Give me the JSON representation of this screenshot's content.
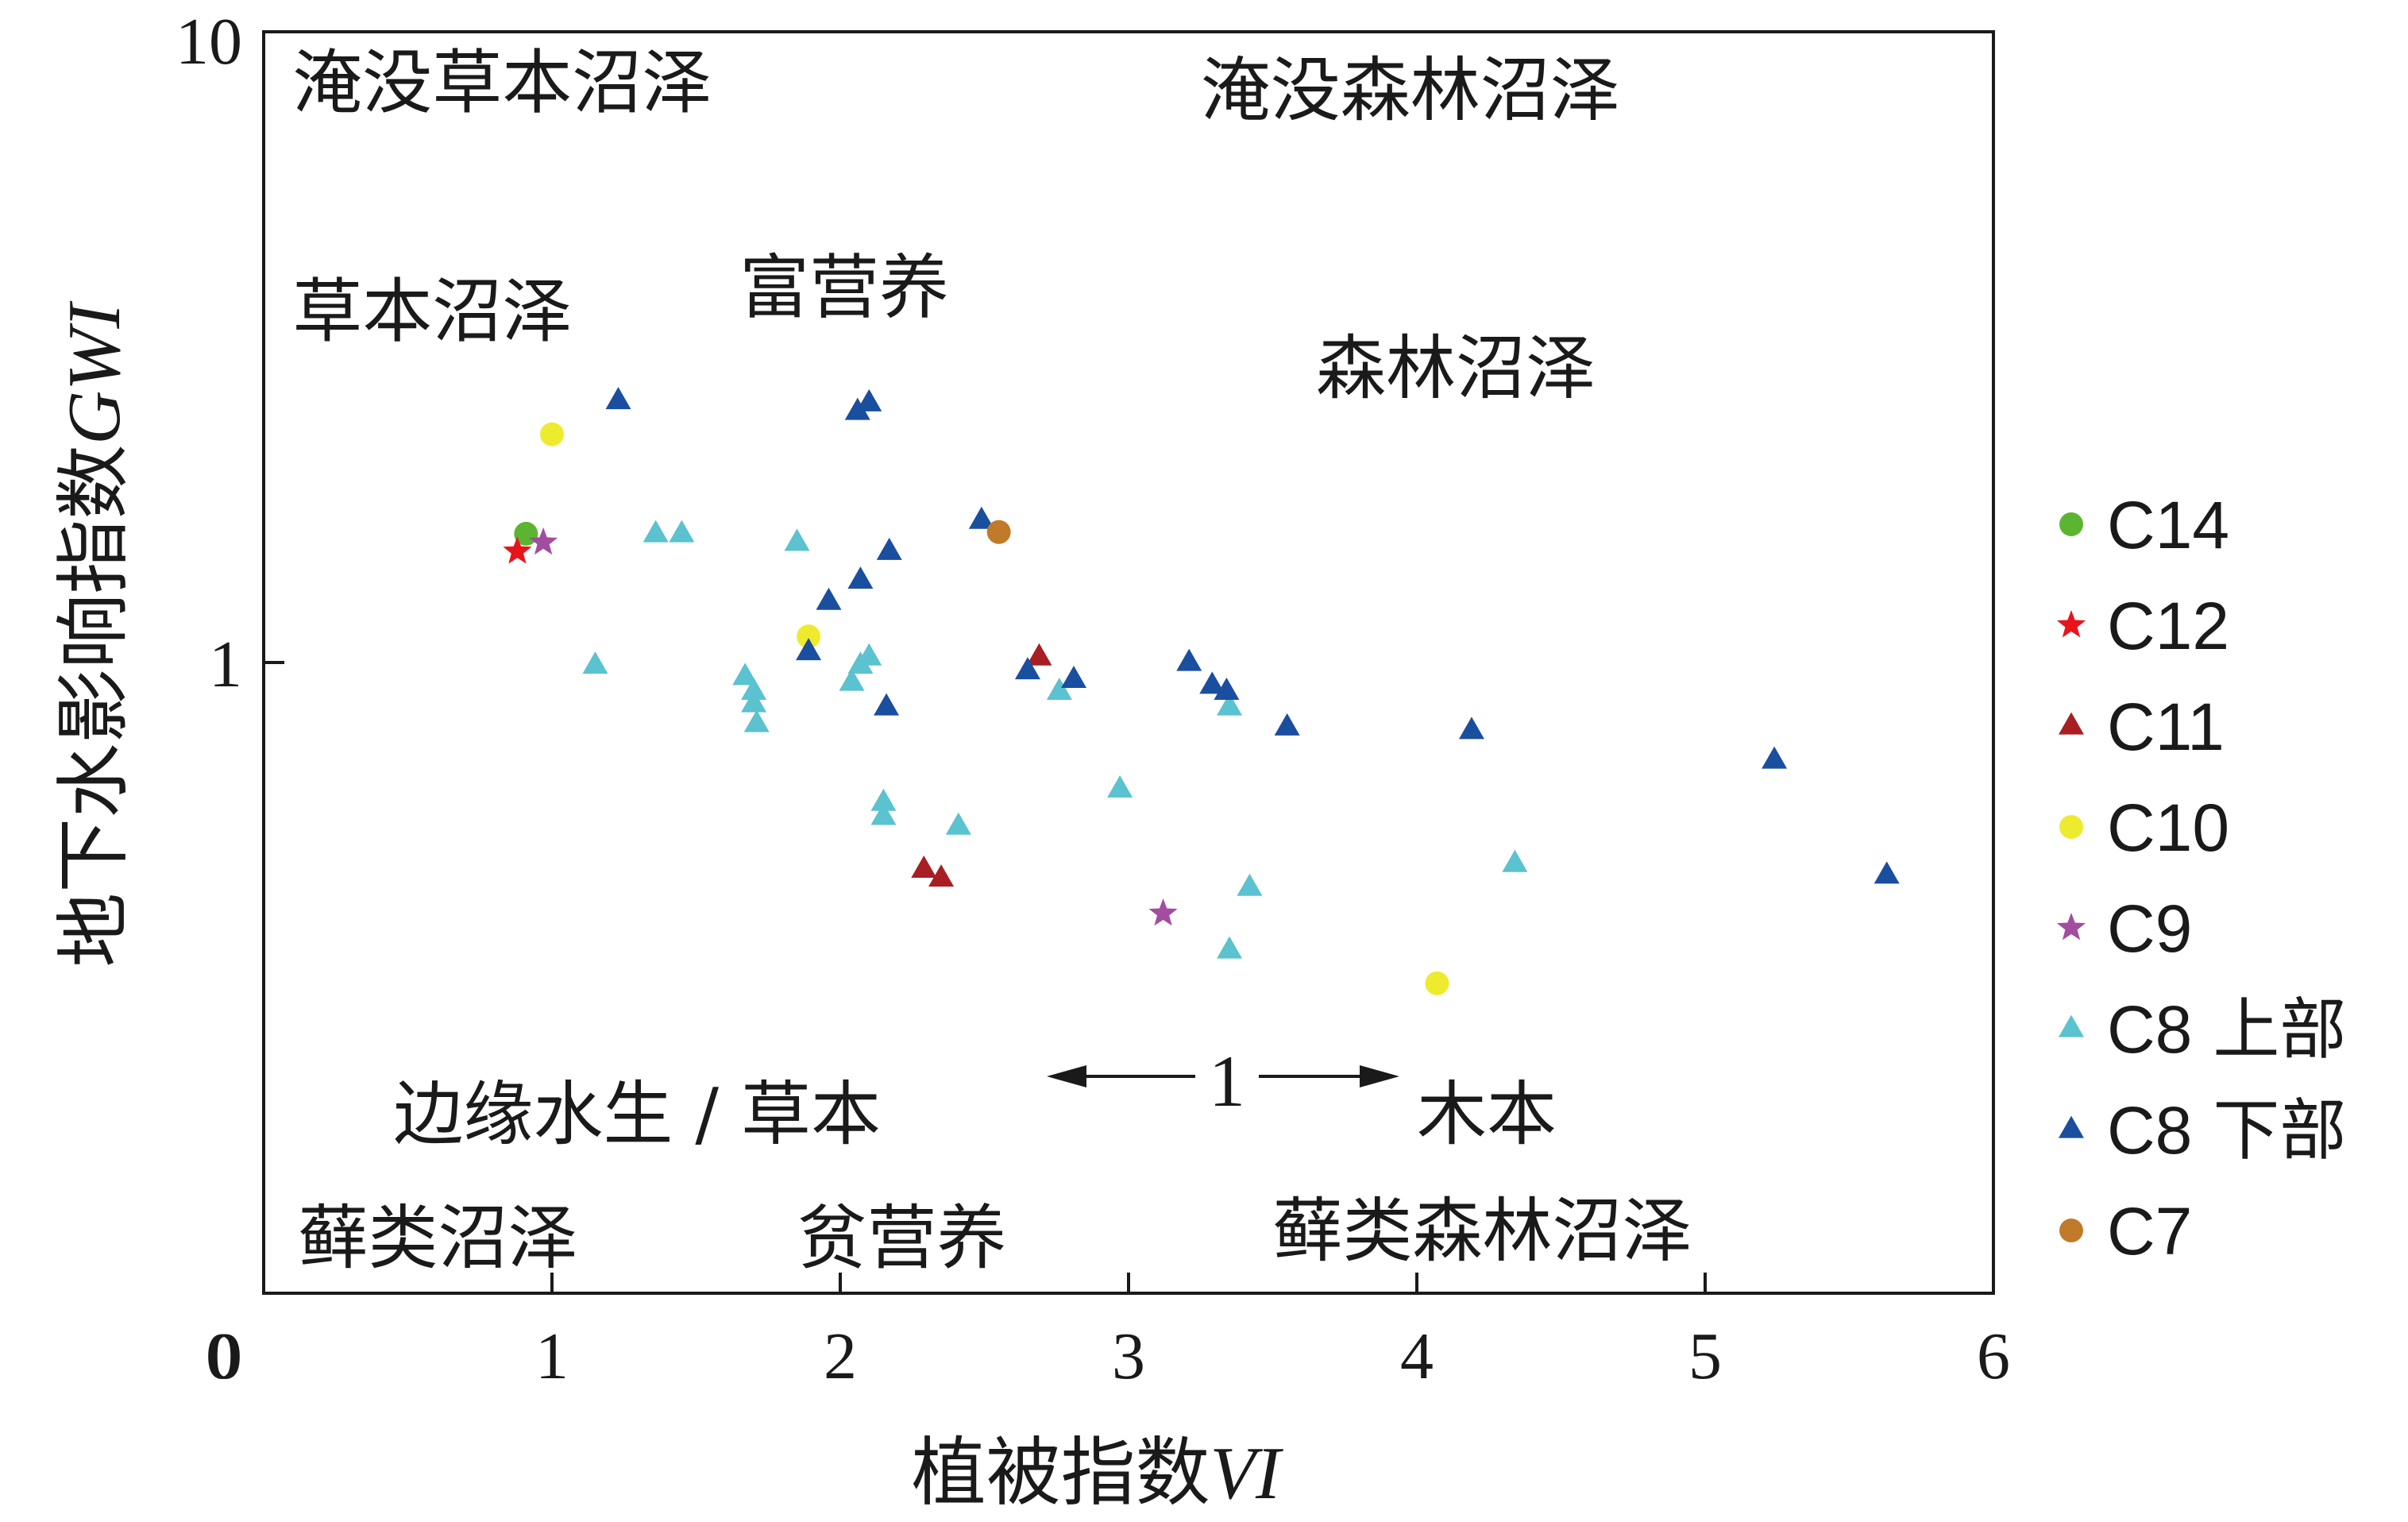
{
  "chart_data": {
    "type": "scatter",
    "xlabel": "植被指数",
    "xlabel_var": "VI",
    "ylabel": "地下水影响指数",
    "ylabel_var": "GWI",
    "xlim": [
      0,
      6
    ],
    "ylim": [
      0.1,
      10
    ],
    "y_scale": "log",
    "x_ticks": [
      "0",
      "1",
      "2",
      "3",
      "4",
      "5",
      "6"
    ],
    "y_ticks": [
      {
        "value": 10,
        "label": "10"
      },
      {
        "value": 1,
        "label": "1"
      },
      {
        "value": 0.1,
        "label": "0"
      }
    ],
    "grid": false,
    "legend_position": "right",
    "regions": [
      {
        "text": "淹没草本沼泽",
        "x": 0.1,
        "y": 7.6
      },
      {
        "text": "淹没森林沼泽",
        "x": 3.25,
        "y": 7.4
      },
      {
        "text": "草本沼泽",
        "x": 0.1,
        "y": 3.3
      },
      {
        "text": "富营养",
        "x": 1.65,
        "y": 3.6
      },
      {
        "text": "森林沼泽",
        "x": 3.65,
        "y": 2.68
      },
      {
        "text": "边缘水生 / 草本",
        "x": 0.45,
        "y": 0.176
      },
      {
        "text": "木本",
        "x": 4.0,
        "y": 0.176
      },
      {
        "text": "藓类沼泽",
        "x": 0.12,
        "y": 0.112
      },
      {
        "text": "贫营养",
        "x": 1.85,
        "y": 0.112
      },
      {
        "text": "藓类森林沼泽",
        "x": 3.5,
        "y": 0.115
      }
    ],
    "arrow_label": "1",
    "series": [
      {
        "name": "C14",
        "marker": "circle",
        "color": "#5cb531",
        "points": [
          [
            0.91,
            1.6
          ]
        ]
      },
      {
        "name": "C12",
        "marker": "star",
        "color": "#e8141b",
        "points": [
          [
            0.88,
            1.5
          ]
        ]
      },
      {
        "name": "C11",
        "marker": "triangle",
        "color": "#a81e22",
        "points": [
          [
            2.69,
            1.02
          ],
          [
            2.29,
            0.47
          ],
          [
            2.35,
            0.455
          ]
        ]
      },
      {
        "name": "C10",
        "marker": "circle",
        "color": "#eeeb2f",
        "points": [
          [
            1.0,
            2.3
          ],
          [
            1.89,
            1.1
          ],
          [
            4.07,
            0.31
          ]
        ]
      },
      {
        "name": "C9",
        "marker": "star",
        "color": "#a34da0",
        "points": [
          [
            0.97,
            1.55
          ],
          [
            3.12,
            0.4
          ]
        ]
      },
      {
        "name": "C8 上部",
        "marker": "triangle",
        "color": "#5bc2cf",
        "points": [
          [
            1.15,
            0.99
          ],
          [
            1.36,
            1.6
          ],
          [
            1.45,
            1.6
          ],
          [
            1.85,
            1.55
          ],
          [
            1.67,
            0.95
          ],
          [
            1.7,
            0.9
          ],
          [
            1.7,
            0.86
          ],
          [
            1.71,
            0.8
          ],
          [
            2.1,
            1.02
          ],
          [
            2.07,
            0.99
          ],
          [
            2.04,
            0.93
          ],
          [
            2.15,
            0.6
          ],
          [
            2.15,
            0.57
          ],
          [
            2.41,
            0.55
          ],
          [
            2.76,
            0.9
          ],
          [
            2.97,
            0.63
          ],
          [
            3.35,
            0.85
          ],
          [
            3.42,
            0.44
          ],
          [
            3.35,
            0.35
          ],
          [
            4.34,
            0.48
          ]
        ]
      },
      {
        "name": "C8 下部",
        "marker": "triangle",
        "color": "#1a4e9f",
        "points": [
          [
            1.23,
            2.6
          ],
          [
            2.06,
            2.5
          ],
          [
            2.1,
            2.58
          ],
          [
            1.96,
            1.25
          ],
          [
            2.07,
            1.35
          ],
          [
            2.17,
            1.5
          ],
          [
            2.49,
            1.68
          ],
          [
            1.89,
            1.04
          ],
          [
            2.16,
            0.85
          ],
          [
            2.65,
            0.97
          ],
          [
            2.81,
            0.94
          ],
          [
            3.21,
            1.0
          ],
          [
            3.29,
            0.92
          ],
          [
            3.34,
            0.9
          ],
          [
            3.55,
            0.79
          ],
          [
            4.19,
            0.78
          ],
          [
            5.24,
            0.7
          ],
          [
            5.63,
            0.46
          ]
        ]
      },
      {
        "name": "C7",
        "marker": "circle",
        "color": "#c07a2a",
        "points": [
          [
            2.55,
            1.61
          ]
        ]
      }
    ]
  }
}
